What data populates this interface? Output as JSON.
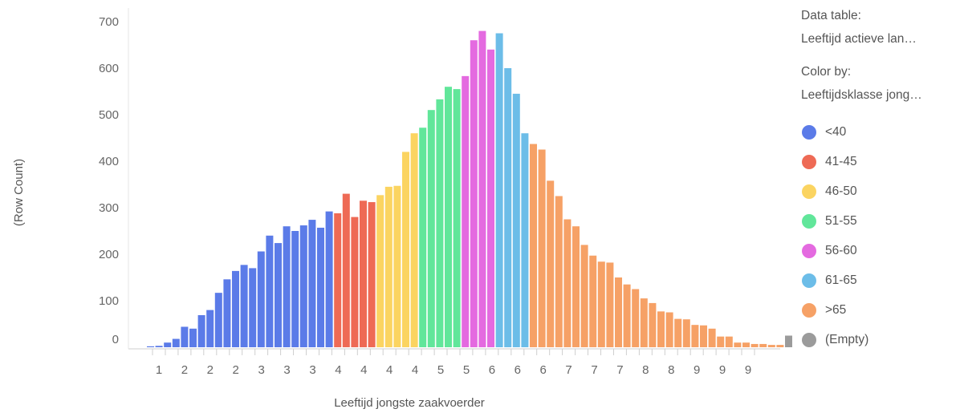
{
  "chart_data": {
    "type": "bar",
    "xlabel": "Leeftijd jongste zaakvoerder",
    "ylabel": "(Row Count)",
    "ylim": [
      0,
      700
    ],
    "yticks": [
      0,
      100,
      200,
      300,
      400,
      500,
      600,
      700
    ],
    "xtick_labels": [
      "1",
      "2",
      "2",
      "2",
      "3",
      "3",
      "3",
      "4",
      "4",
      "4",
      "4",
      "5",
      "5",
      "6",
      "6",
      "6",
      "7",
      "7",
      "7",
      "8",
      "8",
      "9",
      "9",
      "9"
    ],
    "grid": false,
    "legend_position": "right",
    "series": [
      {
        "name": "<40",
        "color": "#5b7be8",
        "values": [
          2,
          3,
          10,
          18,
          44,
          40,
          69,
          80,
          117,
          146,
          164,
          177,
          170,
          206,
          240,
          224,
          260,
          250,
          262,
          274,
          257,
          292
        ]
      },
      {
        "name": "41-45",
        "color": "#ee6a55",
        "values": [
          288,
          330,
          280,
          315,
          312
        ]
      },
      {
        "name": "46-50",
        "color": "#fbd461",
        "values": [
          327,
          345,
          347,
          420,
          460
        ]
      },
      {
        "name": "51-55",
        "color": "#61e69a",
        "values": [
          472,
          510,
          533,
          560,
          555
        ]
      },
      {
        "name": "56-60",
        "color": "#e46ae0",
        "values": [
          583,
          660,
          680,
          640
        ]
      },
      {
        "name": "61-65",
        "color": "#6cbde8",
        "values": [
          675,
          600,
          545,
          460
        ]
      },
      {
        "name": ">65",
        "color": "#f6a166",
        "values": [
          437,
          425,
          358,
          325,
          275,
          260,
          220,
          197,
          184,
          182,
          150,
          135,
          125,
          105,
          95,
          77,
          75,
          61,
          60,
          48,
          47,
          40,
          23,
          23,
          10,
          10,
          7,
          7,
          5,
          5
        ]
      },
      {
        "name": "(Empty)",
        "color": "#9b9b9b",
        "values": [
          25
        ]
      }
    ]
  },
  "legend": {
    "data_table_label": "Data table:",
    "data_table_value": "Leeftijd actieve lan…",
    "color_by_label": "Color by:",
    "color_by_value": "Leeftijdsklasse jong…"
  }
}
